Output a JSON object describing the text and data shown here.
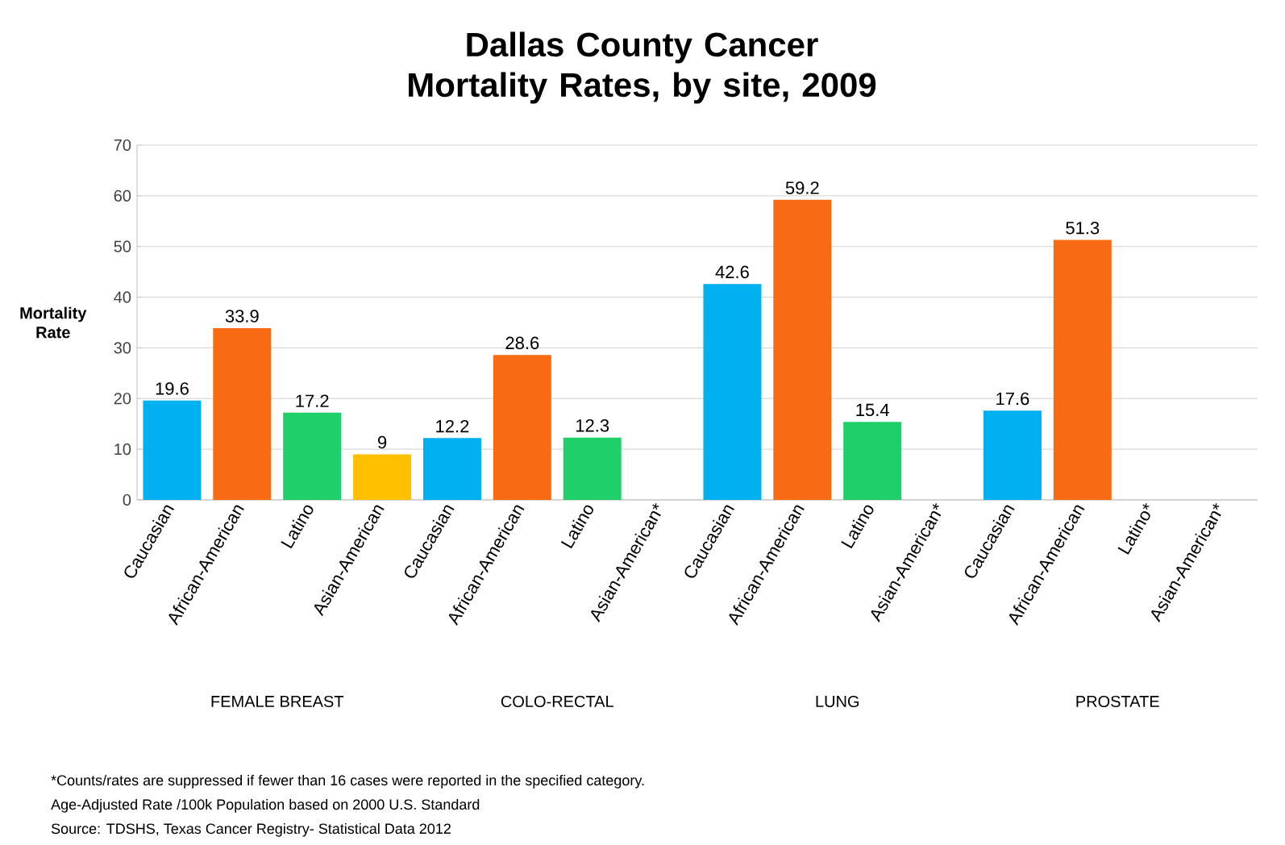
{
  "chart_data": {
    "type": "bar",
    "title": "Dallas County Cancer Mortality Rates, by site, 2009",
    "ylabel": "Mortality Rate",
    "categories": [
      "Caucasian",
      "African-American",
      "Latino",
      "Asian-American",
      "Caucasian",
      "African-American",
      "Latino",
      "Asian-American*",
      "Caucasian",
      "African-American",
      "Latino",
      "Asian-American*",
      "Caucasian",
      "African-American",
      "Latino*",
      "Asian-American*"
    ],
    "values": [
      19.6,
      33.9,
      17.2,
      9,
      12.2,
      28.6,
      12.3,
      null,
      42.6,
      59.2,
      15.4,
      null,
      17.6,
      51.3,
      null,
      null
    ],
    "colors": [
      "#00b0f0",
      "#f96b12",
      "#1fcf6a",
      "#ffc000",
      "#00b0f0",
      "#f96b12",
      "#1fcf6a",
      "#ffc000",
      "#00b0f0",
      "#f96b12",
      "#1fcf6a",
      "#ffc000",
      "#00b0f0",
      "#f96b12",
      "#1fcf6a",
      "#ffc000"
    ],
    "ylim": [
      0,
      70
    ],
    "yticks": [
      0,
      10,
      20,
      30,
      40,
      50,
      60,
      70
    ],
    "grid": "y",
    "data_labels": true,
    "annotations": [
      "FEMALE BREAST",
      "COLO-RECTAL",
      "LUNG",
      "PROSTATE",
      "*Counts/rates are suppressed if fewer than 16 cases were reported in the specified category.",
      "Age-Adjusted Rate /100k  Population based on 2000 U.S. Standard",
      "Source:  TDSHS, Texas Cancer Registry- Statistical Data 2012"
    ]
  }
}
